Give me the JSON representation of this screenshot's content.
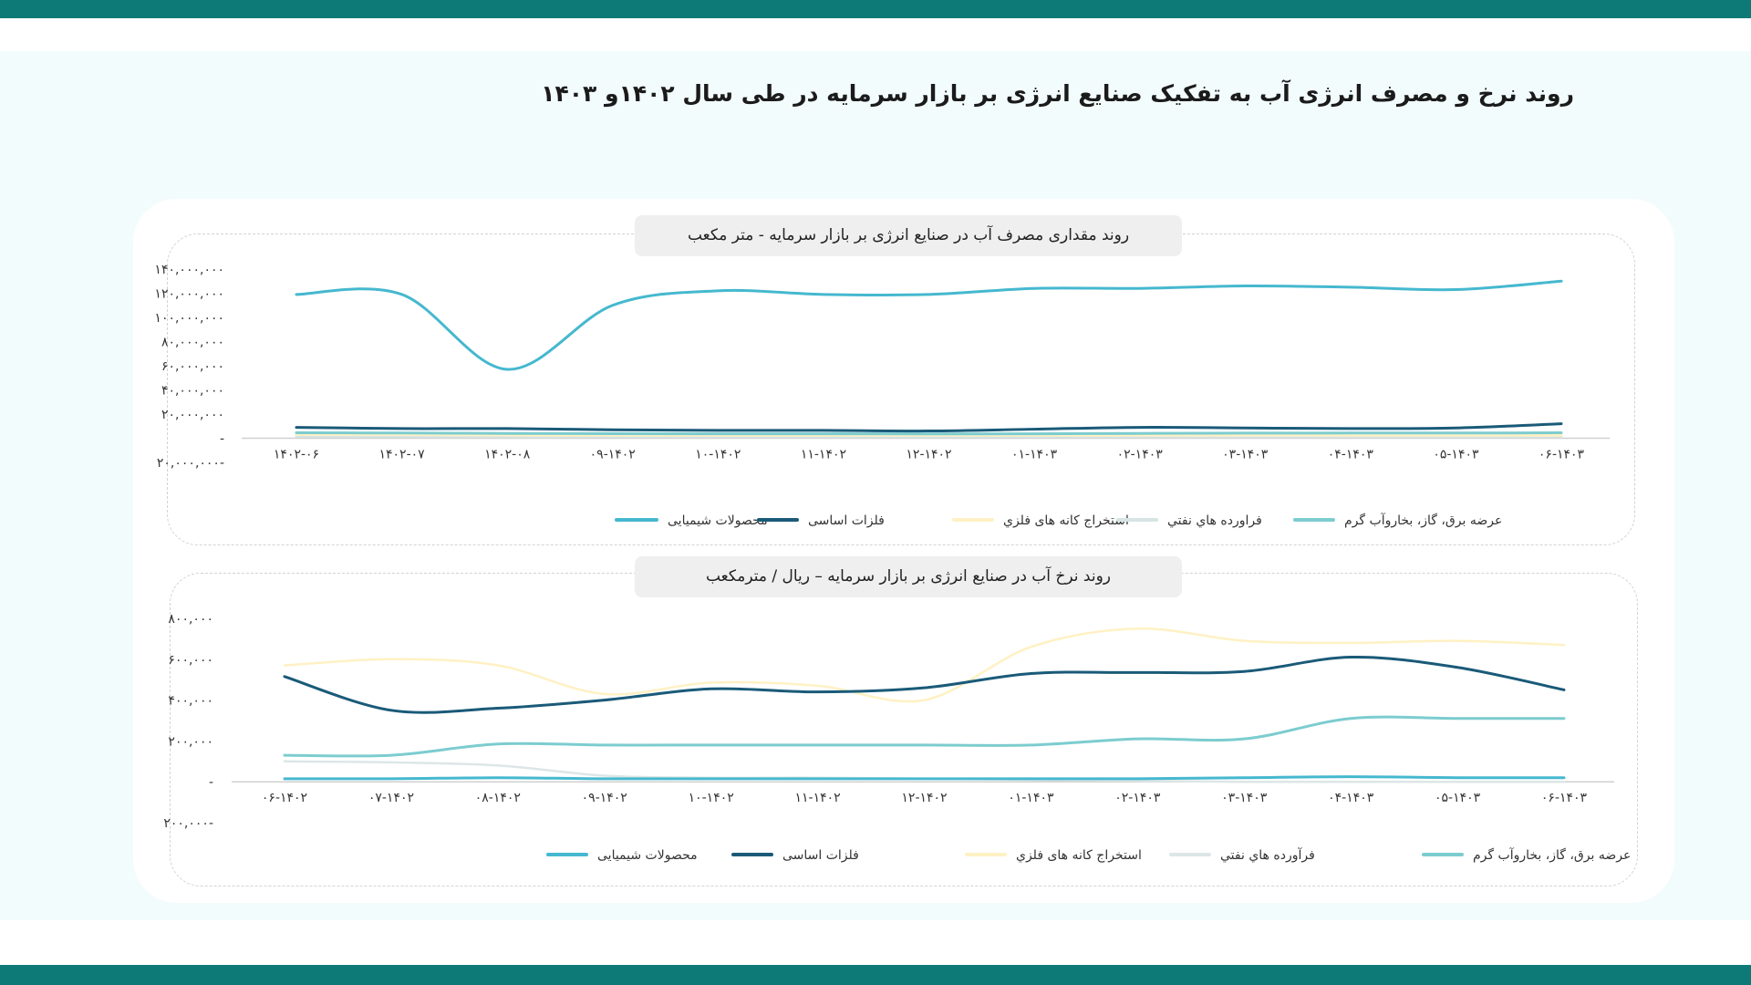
{
  "page": {
    "title": "روند  نرخ و مصرف انرژی آب به تفکیک  صنایع انرژی بر بازار سرمایه در طی سال ۱۴۰۲و ۱۴۰۳"
  },
  "colors": {
    "header_bar": "#0e7a78",
    "background": "#f3fcfd"
  },
  "chart_data": [
    {
      "type": "line",
      "title": "روند مقداری مصرف آب در صنایع انرژی بر بازار سرمایه - متر مکعب",
      "xlabel": "",
      "ylabel": "",
      "x": [
        "۱۴۰۲-۰۶",
        "۱۴۰۲-۰۷",
        "۱۴۰۲-۰۸",
        "۱۴۰۲-۰۹",
        "۱۴۰۲-۱۰",
        "۱۴۰۲-۱۱",
        "۱۴۰۲-۱۲",
        "۱۴۰۳-۰۱",
        "۱۴۰۳-۰۲",
        "۱۴۰۳-۰۳",
        "۱۴۰۳-۰۴",
        "۱۴۰۳-۰۵",
        "۱۴۰۳-۰۶"
      ],
      "x_tick_labels": [
        "۱۴۰۲-۰۶",
        "۱۴۰۲-۰۷",
        "۱۴۰۲-۰۸",
        "۰۹-۱۴۰۲",
        "۱۰-۱۴۰۲",
        "۱۱-۱۴۰۲",
        "۱۲-۱۴۰۲",
        "۰۱-۱۴۰۳",
        "۰۲-۱۴۰۳",
        "۰۳-۱۴۰۳",
        "۰۴-۱۴۰۳",
        "۰۵-۱۴۰۳",
        "۰۶-۱۴۰۳"
      ],
      "ylim": [
        -20000000,
        140000000
      ],
      "yticks": [
        -20000000,
        0,
        20000000,
        40000000,
        60000000,
        80000000,
        100000000,
        120000000,
        140000000
      ],
      "ytick_labels": [
        "۲۰,۰۰۰,۰۰۰-",
        "-",
        "۲۰,۰۰۰,۰۰۰",
        "۴۰,۰۰۰,۰۰۰",
        "۶۰,۰۰۰,۰۰۰",
        "۸۰,۰۰۰,۰۰۰",
        "۱۰۰,۰۰۰,۰۰۰",
        "۱۲۰,۰۰۰,۰۰۰",
        "۱۴۰,۰۰۰,۰۰۰"
      ],
      "grid": false,
      "legend": "bottom",
      "series": [
        {
          "name": "محصولات شیمیایی",
          "color": "#45b8cf",
          "width": 3,
          "values": [
            119000000,
            119000000,
            57000000,
            110000000,
            122000000,
            119000000,
            119000000,
            124000000,
            124000000,
            126000000,
            125000000,
            123000000,
            130000000
          ]
        },
        {
          "name": "فلزات اساسی",
          "color": "#1a5a78",
          "width": 3,
          "values": [
            9000000,
            8000000,
            8000000,
            7000000,
            6500000,
            6500000,
            6000000,
            7500000,
            9000000,
            8500000,
            8000000,
            8500000,
            12000000
          ]
        },
        {
          "name": "استخراج کانه های فلزي",
          "color": "#fff1c4",
          "width": 3,
          "values": [
            3000000,
            3000000,
            2500000,
            2500000,
            2500000,
            2500000,
            2500000,
            2500000,
            2500000,
            2500000,
            2500000,
            2500000,
            2500000
          ]
        },
        {
          "name": "فراورده هاي نفتي",
          "color": "#d6e4e4",
          "width": 3,
          "values": [
            1500000,
            1500000,
            1200000,
            1200000,
            1200000,
            1200000,
            1200000,
            1200000,
            1200000,
            1200000,
            1200000,
            1200000,
            1200000
          ]
        },
        {
          "name": "عرضه برق، گاز، بخاروآب گرم",
          "color": "#7ccccf",
          "width": 3,
          "values": [
            4500000,
            4300000,
            4000000,
            3800000,
            3700000,
            3700000,
            3600000,
            3700000,
            4000000,
            4200000,
            4300000,
            4300000,
            4500000
          ]
        }
      ]
    },
    {
      "type": "line",
      "title": "روند نرخ آب در صنایع انرژی بر بازار سرمایه – ریال / مترمکعب",
      "xlabel": "",
      "ylabel": "",
      "x": [
        "۱۴۰۲-۰۶",
        "۱۴۰۲-۰۷",
        "۱۴۰۲-۰۸",
        "۱۴۰۲-۰۹",
        "۱۴۰۲-۱۰",
        "۱۴۰۲-۱۱",
        "۱۴۰۲-۱۲",
        "۱۴۰۳-۰۱",
        "۱۴۰۳-۰۲",
        "۱۴۰۳-۰۳",
        "۱۴۰۳-۰۴",
        "۱۴۰۳-۰۵",
        "۱۴۰۳-۰۶"
      ],
      "x_tick_labels": [
        "۰۶-۱۴۰۲",
        "۰۷-۱۴۰۲",
        "۰۸-۱۴۰۲",
        "۰۹-۱۴۰۲",
        "۱۰-۱۴۰۲",
        "۱۱-۱۴۰۲",
        "۱۲-۱۴۰۲",
        "۰۱-۱۴۰۳",
        "۰۲-۱۴۰۳",
        "۰۳-۱۴۰۳",
        "۰۴-۱۴۰۳",
        "۰۵-۱۴۰۳",
        "۰۶-۱۴۰۳"
      ],
      "ylim": [
        -200000,
        800000
      ],
      "yticks": [
        -200000,
        0,
        200000,
        400000,
        600000,
        800000
      ],
      "ytick_labels": [
        "۲۰۰,۰۰۰-",
        "-",
        "۲۰۰,۰۰۰",
        "۴۰۰,۰۰۰",
        "۶۰۰,۰۰۰",
        "۸۰۰,۰۰۰"
      ],
      "grid": false,
      "legend": "bottom",
      "series": [
        {
          "name": "محصولات شیمیایی",
          "color": "#45b8cf",
          "width": 3,
          "values": [
            15000,
            15000,
            20000,
            15000,
            15000,
            15000,
            15000,
            15000,
            15000,
            20000,
            25000,
            20000,
            20000
          ]
        },
        {
          "name": "فلزات اساسی",
          "color": "#1a5a78",
          "width": 3,
          "values": [
            515000,
            350000,
            360000,
            400000,
            455000,
            440000,
            460000,
            530000,
            535000,
            540000,
            610000,
            560000,
            450000
          ]
        },
        {
          "name": "استخراج کانه های فلزي",
          "color": "#fff1c4",
          "width": 2.5,
          "values": [
            570000,
            600000,
            570000,
            430000,
            485000,
            470000,
            400000,
            660000,
            750000,
            690000,
            680000,
            690000,
            670000
          ]
        },
        {
          "name": "فرآورده هاي نفتي",
          "color": "#dde6e6",
          "width": 2.5,
          "values": [
            100000,
            95000,
            80000,
            30000,
            20000,
            20000,
            15000,
            10000,
            5000,
            0,
            0,
            0,
            0
          ]
        },
        {
          "name": "عرضه برق، گاز، بخاروآب گرم",
          "color": "#7ccccf",
          "width": 3,
          "values": [
            130000,
            130000,
            185000,
            180000,
            180000,
            180000,
            180000,
            180000,
            210000,
            210000,
            310000,
            310000,
            310000
          ]
        }
      ]
    }
  ]
}
